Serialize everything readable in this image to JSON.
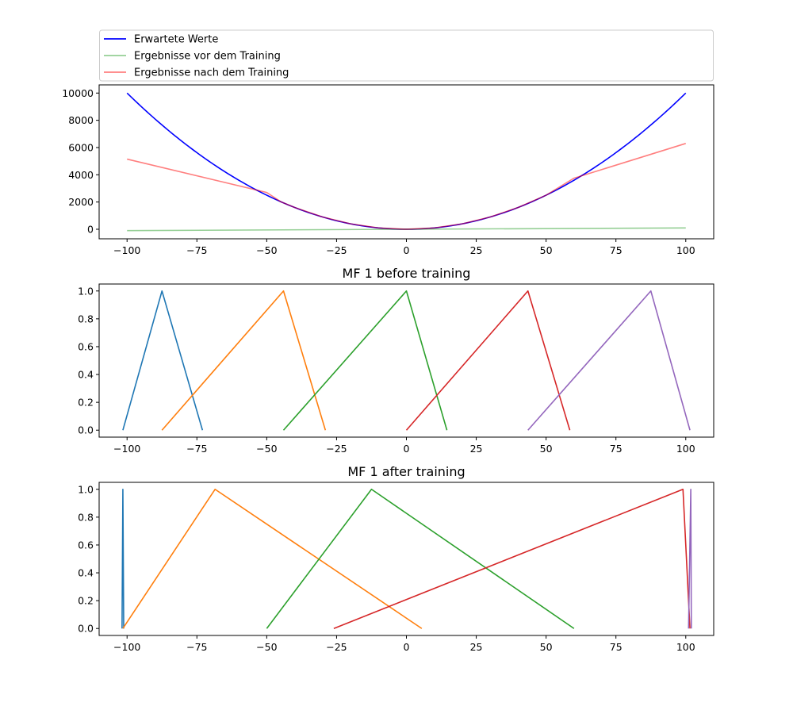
{
  "chart_data": [
    {
      "type": "line",
      "title": "",
      "xlabel": "",
      "ylabel": "",
      "xlim": [
        -110,
        110
      ],
      "ylim": [
        -700,
        10600
      ],
      "xticks": [
        -100,
        -75,
        -50,
        -25,
        0,
        25,
        50,
        75,
        100
      ],
      "yticks": [
        0,
        2000,
        4000,
        6000,
        8000,
        10000
      ],
      "grid": false,
      "legend": {
        "placement": "above-top",
        "entries": [
          "Erwartete Werte",
          "Ergebnisse vor dem Training",
          "Ergebnisse nach dem Training"
        ]
      },
      "series": [
        {
          "name": "Erwartete Werte",
          "color": "#0000ff",
          "opacity": 1,
          "function": "x^2",
          "domain": [
            -100,
            100
          ]
        },
        {
          "name": "Ergebnisse vor dem Training",
          "color": "#2ca02c",
          "opacity": 0.5,
          "x": [
            -100,
            100
          ],
          "y": [
            -100,
            100
          ]
        },
        {
          "name": "Ergebnisse nach dem Training",
          "color": "#ff0000",
          "opacity": 0.5,
          "x": [
            -100,
            -50,
            -45,
            -40,
            -30,
            -20,
            -10,
            0,
            10,
            20,
            30,
            40,
            50,
            60,
            100
          ],
          "y": [
            5150,
            2700,
            2025,
            1600,
            900,
            400,
            100,
            0,
            100,
            400,
            900,
            1600,
            2500,
            3750,
            6300
          ]
        }
      ]
    },
    {
      "type": "line",
      "title": "MF 1 before training",
      "xlim": [
        -110,
        110
      ],
      "ylim": [
        -0.05,
        1.05
      ],
      "xticks": [
        -100,
        -75,
        -50,
        -25,
        0,
        25,
        50,
        75,
        100
      ],
      "yticks": [
        0.0,
        0.2,
        0.4,
        0.6,
        0.8,
        1.0
      ],
      "grid": false,
      "series": [
        {
          "color": "#1f77b4",
          "x": [
            -101.5,
            -87.5,
            -73
          ],
          "y": [
            0,
            1,
            0
          ]
        },
        {
          "color": "#ff7f0e",
          "x": [
            -87.5,
            -44,
            -29
          ],
          "y": [
            0,
            1,
            0
          ]
        },
        {
          "color": "#2ca02c",
          "x": [
            -44,
            0,
            14.5
          ],
          "y": [
            0,
            1,
            0
          ]
        },
        {
          "color": "#d62728",
          "x": [
            0,
            43.5,
            58.5
          ],
          "y": [
            0,
            1,
            0
          ]
        },
        {
          "color": "#9467bd",
          "x": [
            43.5,
            87.5,
            101.5
          ],
          "y": [
            0,
            1,
            0
          ]
        }
      ]
    },
    {
      "type": "line",
      "title": "MF 1 after training",
      "xlim": [
        -110,
        110
      ],
      "ylim": [
        -0.05,
        1.05
      ],
      "xticks": [
        -100,
        -75,
        -50,
        -25,
        0,
        25,
        50,
        75,
        100
      ],
      "yticks": [
        0.0,
        0.2,
        0.4,
        0.6,
        0.8,
        1.0
      ],
      "grid": false,
      "series": [
        {
          "color": "#1f77b4",
          "x": [
            -101.8,
            -101.5,
            -101.2
          ],
          "y": [
            0,
            1,
            0
          ]
        },
        {
          "color": "#ff7f0e",
          "x": [
            -101.5,
            -68.5,
            5.5
          ],
          "y": [
            0,
            1,
            0
          ]
        },
        {
          "color": "#2ca02c",
          "x": [
            -50,
            -12.5,
            60
          ],
          "y": [
            0,
            1,
            0
          ]
        },
        {
          "color": "#d62728",
          "x": [
            -26,
            99,
            101.5
          ],
          "y": [
            0,
            1,
            0
          ]
        },
        {
          "color": "#9467bd",
          "x": [
            101,
            101.8,
            102
          ],
          "y": [
            0,
            1,
            0
          ]
        }
      ]
    }
  ]
}
